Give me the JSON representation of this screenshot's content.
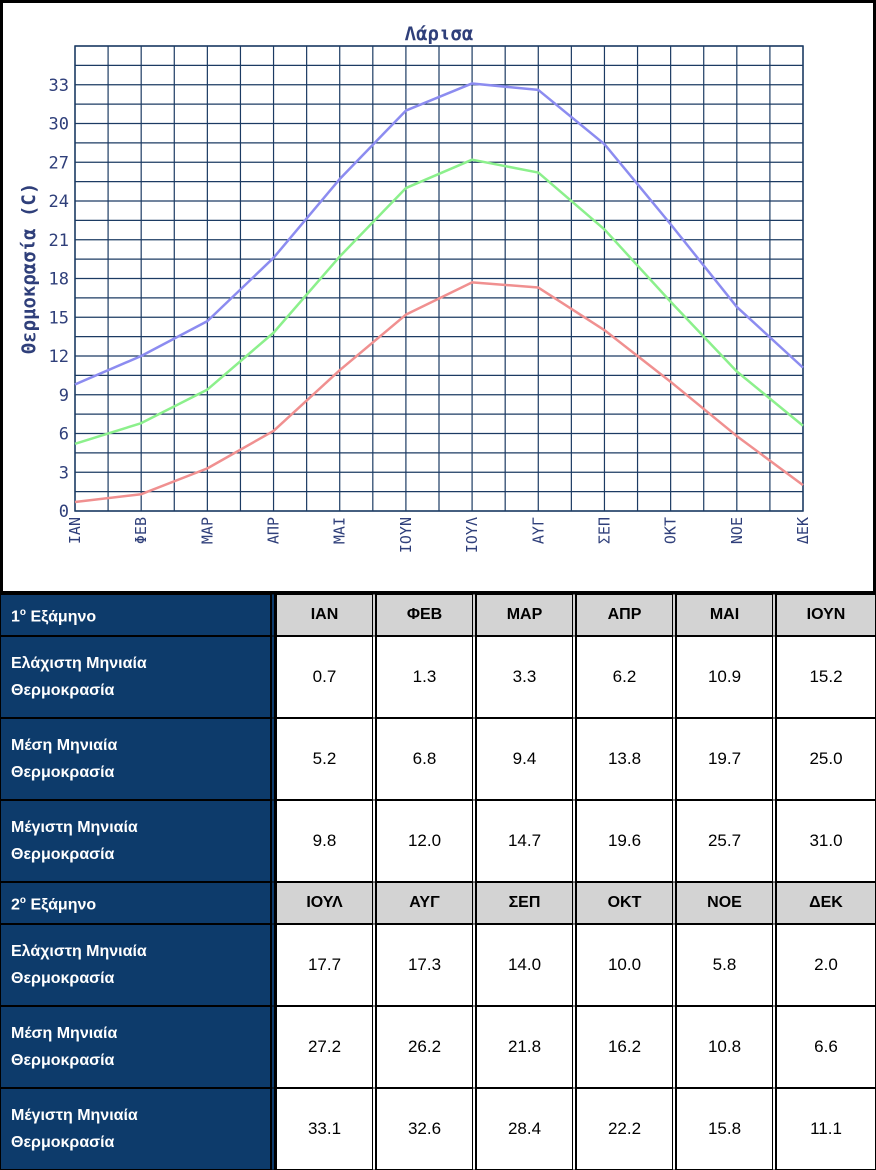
{
  "chart_data": {
    "type": "line",
    "title": "Λάρισα",
    "ylabel": "Θερμοκρασία (C)",
    "xlabel": "",
    "categories": [
      "ΙΑΝ",
      "ΦΕΒ",
      "ΜΑΡ",
      "ΑΠΡ",
      "ΜΑΙ",
      "ΙΟΥΝ",
      "ΙΟΥΛ",
      "ΑΥΓ",
      "ΣΕΠ",
      "ΟΚΤ",
      "ΝΟΕ",
      "ΔΕΚ"
    ],
    "yticks": [
      0,
      3,
      6,
      9,
      12,
      15,
      18,
      21,
      24,
      27,
      30,
      33
    ],
    "ylim": [
      0,
      36
    ],
    "grid": true,
    "series": [
      {
        "color": "#8c8cf0",
        "values": [
          9.8,
          12.0,
          14.7,
          19.6,
          25.7,
          31.0,
          33.1,
          32.6,
          28.4,
          22.2,
          15.8,
          11.1
        ]
      },
      {
        "color": "#8cf08c",
        "values": [
          5.2,
          6.8,
          9.4,
          13.8,
          19.7,
          25.0,
          27.2,
          26.2,
          21.8,
          16.2,
          10.8,
          6.6
        ]
      },
      {
        "color": "#f09090",
        "values": [
          0.7,
          1.3,
          3.3,
          6.2,
          10.9,
          15.2,
          17.7,
          17.3,
          14.0,
          10.0,
          5.8,
          2.0
        ]
      }
    ]
  },
  "colors": {
    "grid": "#1c3b63",
    "axis_text": "#2f3f7a",
    "row_label_bg": "#0d3b6b",
    "header_bg": "#d3d3d3"
  },
  "table": {
    "semesters": [
      {
        "label": "Εξάμηνο",
        "num": "1",
        "sup": "ο",
        "months": [
          "ΙΑΝ",
          "ΦΕΒ",
          "ΜΑΡ",
          "ΑΠΡ",
          "ΜΑΙ",
          "ΙΟΥΝ"
        ],
        "rows": [
          {
            "label_line1": "Ελάχιστη Μηνιαία",
            "label_line2": "Θερμοκρασία",
            "values": [
              "0.7",
              "1.3",
              "3.3",
              "6.2",
              "10.9",
              "15.2"
            ]
          },
          {
            "label_line1": "Μέση Μηνιαία",
            "label_line2": "Θερμοκρασία",
            "values": [
              "5.2",
              "6.8",
              "9.4",
              "13.8",
              "19.7",
              "25.0"
            ]
          },
          {
            "label_line1": "Μέγιστη Μηνιαία",
            "label_line2": "Θερμοκρασία",
            "values": [
              "9.8",
              "12.0",
              "14.7",
              "19.6",
              "25.7",
              "31.0"
            ]
          }
        ]
      },
      {
        "label": "Εξάμηνο",
        "num": "2",
        "sup": "ο",
        "months": [
          "ΙΟΥΛ",
          "ΑΥΓ",
          "ΣΕΠ",
          "ΟΚΤ",
          "ΝΟΕ",
          "ΔΕΚ"
        ],
        "rows": [
          {
            "label_line1": "Ελάχιστη Μηνιαία",
            "label_line2": "Θερμοκρασία",
            "values": [
              "17.7",
              "17.3",
              "14.0",
              "10.0",
              "5.8",
              "2.0"
            ]
          },
          {
            "label_line1": "Μέση Μηνιαία",
            "label_line2": "Θερμοκρασία",
            "values": [
              "27.2",
              "26.2",
              "21.8",
              "16.2",
              "10.8",
              "6.6"
            ]
          },
          {
            "label_line1": "Μέγιστη Μηνιαία",
            "label_line2": "Θερμοκρασία",
            "values": [
              "33.1",
              "32.6",
              "28.4",
              "22.2",
              "15.8",
              "11.1"
            ]
          }
        ]
      }
    ]
  }
}
